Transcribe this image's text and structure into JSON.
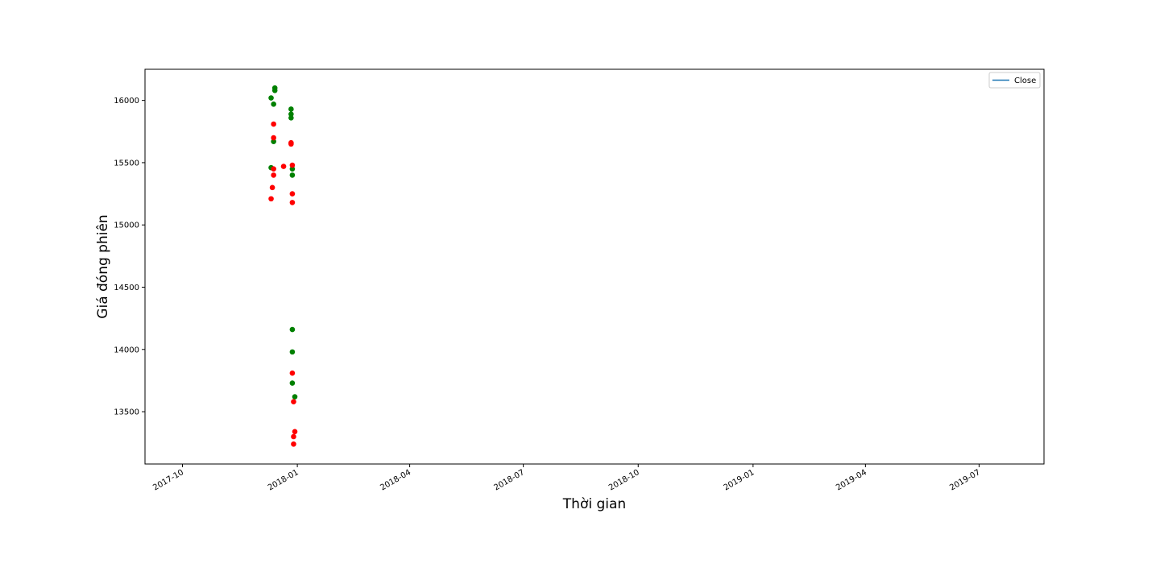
{
  "chart_data": {
    "type": "scatter",
    "xlabel": "Thời gian",
    "ylabel": "Giá đóng phiên",
    "xlim": [
      "2017-09-01",
      "2019-08-22"
    ],
    "ylim": [
      13080,
      16250
    ],
    "x_ticks": [
      "2017-10",
      "2018-01",
      "2018-04",
      "2018-07",
      "2018-10",
      "2019-01",
      "2019-04",
      "2019-07"
    ],
    "y_ticks": [
      13500,
      14000,
      14500,
      15000,
      15500,
      16000
    ],
    "legend": {
      "entries": [
        {
          "label": "Close",
          "color": "#1f77b4"
        }
      ],
      "placement": "top-right"
    },
    "grid": false,
    "colors": {
      "green": "#008000",
      "red": "#ff0000"
    },
    "series": [
      {
        "color": "green",
        "points": [
          {
            "x": "2017-12-11",
            "y": 16020
          },
          {
            "x": "2017-12-14",
            "y": 16080
          },
          {
            "x": "2017-12-14",
            "y": 16100
          },
          {
            "x": "2017-12-13",
            "y": 15970
          },
          {
            "x": "2017-12-13",
            "y": 15670
          },
          {
            "x": "2017-12-11",
            "y": 15460
          },
          {
            "x": "2017-12-27",
            "y": 15930
          },
          {
            "x": "2017-12-27",
            "y": 15890
          },
          {
            "x": "2017-12-27",
            "y": 15860
          },
          {
            "x": "2017-12-28",
            "y": 15450
          },
          {
            "x": "2017-12-28",
            "y": 15400
          },
          {
            "x": "2017-12-28",
            "y": 14160
          },
          {
            "x": "2017-12-28",
            "y": 13980
          },
          {
            "x": "2017-12-28",
            "y": 13730
          },
          {
            "x": "2017-12-30",
            "y": 13620
          }
        ]
      },
      {
        "color": "red",
        "points": [
          {
            "x": "2017-12-13",
            "y": 15810
          },
          {
            "x": "2017-12-13",
            "y": 15700
          },
          {
            "x": "2017-12-13",
            "y": 15450
          },
          {
            "x": "2017-12-13",
            "y": 15400
          },
          {
            "x": "2017-12-12",
            "y": 15300
          },
          {
            "x": "2017-12-11",
            "y": 15210
          },
          {
            "x": "2017-12-21",
            "y": 15470
          },
          {
            "x": "2017-12-27",
            "y": 15660
          },
          {
            "x": "2017-12-27",
            "y": 15650
          },
          {
            "x": "2017-12-28",
            "y": 15480
          },
          {
            "x": "2017-12-28",
            "y": 15250
          },
          {
            "x": "2017-12-28",
            "y": 15180
          },
          {
            "x": "2017-12-28",
            "y": 13810
          },
          {
            "x": "2017-12-29",
            "y": 13580
          },
          {
            "x": "2017-12-30",
            "y": 13340
          },
          {
            "x": "2017-12-29",
            "y": 13300
          },
          {
            "x": "2017-12-29",
            "y": 13240
          }
        ]
      }
    ]
  }
}
